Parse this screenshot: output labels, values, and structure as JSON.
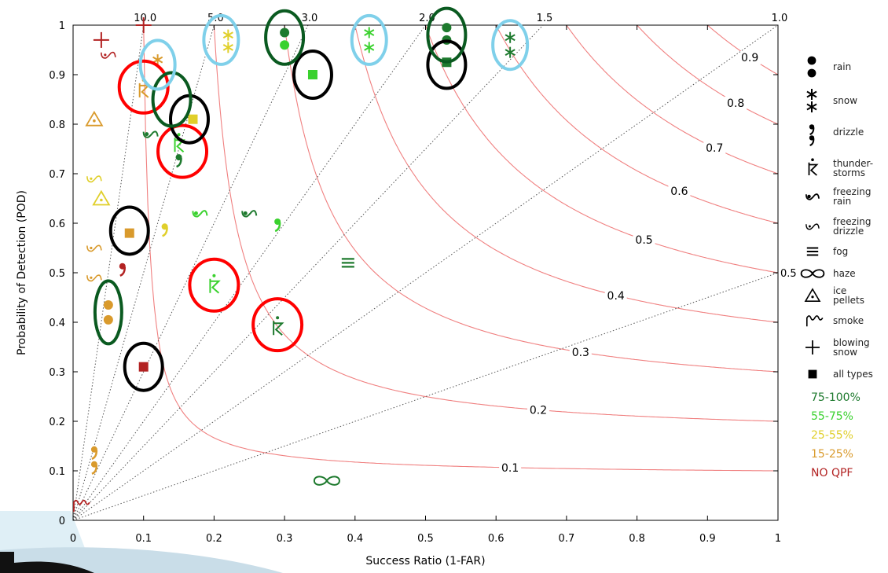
{
  "chart_data": {
    "type": "scatter",
    "title": "",
    "xlabel": "Success Ratio (1-FAR)",
    "ylabel": "Probability of Detection (POD)",
    "xlim": [
      0,
      1
    ],
    "ylim": [
      0,
      1
    ],
    "x_ticks": [
      "0",
      "0.1",
      "0.2",
      "0.3",
      "0.4",
      "0.5",
      "0.6",
      "0.7",
      "0.8",
      "0.9",
      "1"
    ],
    "y_ticks": [
      "0",
      "0.1",
      "0.2",
      "0.3",
      "0.4",
      "0.5",
      "0.6",
      "0.7",
      "0.8",
      "0.9",
      "1"
    ],
    "bias_lines": [
      {
        "bias": 10.0,
        "label": "10.0"
      },
      {
        "bias": 5.0,
        "label": "5.0"
      },
      {
        "bias": 3.0,
        "label": "3.0"
      },
      {
        "bias": 2.0,
        "label": "2.0"
      },
      {
        "bias": 1.5,
        "label": "1.5"
      },
      {
        "bias": 1.0,
        "label": "1.0"
      },
      {
        "bias": 0.5,
        "label": "0.5"
      }
    ],
    "csi_contours": [
      {
        "csi": 0.1,
        "label": "0.1",
        "label_x": 0.62
      },
      {
        "csi": 0.2,
        "label": "0.2",
        "label_x": 0.66
      },
      {
        "csi": 0.3,
        "label": "0.3",
        "label_x": 0.72
      },
      {
        "csi": 0.4,
        "label": "0.4",
        "label_x": 0.77
      },
      {
        "csi": 0.5,
        "label": "0.5",
        "label_x": 0.81
      },
      {
        "csi": 0.6,
        "label": "0.6",
        "label_x": 0.86
      },
      {
        "csi": 0.7,
        "label": "0.7",
        "label_x": 0.91
      },
      {
        "csi": 0.8,
        "label": "0.8",
        "label_x": 0.94
      },
      {
        "csi": 0.9,
        "label": "0.9",
        "label_x": 0.96
      }
    ],
    "colors": {
      "tier_75_100": "#1e7a2e",
      "tier_55_75": "#3ad12e",
      "tier_25_55": "#e0cf2a",
      "tier_15_25": "#d99a2c",
      "no_qpf": "#b22222",
      "csi_line": "#f08080",
      "bias_line": "#555555",
      "highlight_red": "#ff0000",
      "highlight_green": "#0a5a20",
      "highlight_black": "#000000",
      "highlight_blue": "#7fd0ea"
    },
    "points": [
      {
        "type": "rain",
        "tier": "75-100%",
        "x": 0.3,
        "y": 0.985
      },
      {
        "type": "rain",
        "tier": "55-75%",
        "x": 0.3,
        "y": 0.96
      },
      {
        "type": "rain",
        "tier": "75-100%",
        "x": 0.53,
        "y": 0.995
      },
      {
        "type": "rain",
        "tier": "75-100%",
        "x": 0.53,
        "y": 0.97
      },
      {
        "type": "rain",
        "tier": "15-25%",
        "x": 0.05,
        "y": 0.435
      },
      {
        "type": "rain",
        "tier": "15-25%",
        "x": 0.05,
        "y": 0.405
      },
      {
        "type": "snow",
        "tier": "25-55%",
        "x": 0.22,
        "y": 0.98
      },
      {
        "type": "snow",
        "tier": "25-55%",
        "x": 0.22,
        "y": 0.955
      },
      {
        "type": "snow",
        "tier": "55-75%",
        "x": 0.42,
        "y": 0.985
      },
      {
        "type": "snow",
        "tier": "55-75%",
        "x": 0.42,
        "y": 0.955
      },
      {
        "type": "snow",
        "tier": "75-100%",
        "x": 0.62,
        "y": 0.975
      },
      {
        "type": "snow",
        "tier": "75-100%",
        "x": 0.62,
        "y": 0.945
      },
      {
        "type": "snow",
        "tier": "15-25%",
        "x": 0.12,
        "y": 0.93
      },
      {
        "type": "drizzle",
        "tier": "55-75%",
        "x": 0.29,
        "y": 0.6
      },
      {
        "type": "drizzle",
        "tier": "25-55%",
        "x": 0.13,
        "y": 0.59
      },
      {
        "type": "drizzle",
        "tier": "NO QPF",
        "x": 0.07,
        "y": 0.51
      },
      {
        "type": "drizzle",
        "tier": "15-25%",
        "x": 0.03,
        "y": 0.14
      },
      {
        "type": "drizzle",
        "tier": "15-25%",
        "x": 0.03,
        "y": 0.11
      },
      {
        "type": "drizzle",
        "tier": "75-100%",
        "x": 0.15,
        "y": 0.73
      },
      {
        "type": "thunderstorms",
        "tier": "55-75%",
        "x": 0.2,
        "y": 0.475
      },
      {
        "type": "thunderstorms",
        "tier": "75-100%",
        "x": 0.29,
        "y": 0.39
      },
      {
        "type": "thunderstorms",
        "tier": "15-25%",
        "x": 0.1,
        "y": 0.87
      },
      {
        "type": "thunderstorms",
        "tier": "55-75%",
        "x": 0.15,
        "y": 0.76
      },
      {
        "type": "freezing rain",
        "tier": "55-75%",
        "x": 0.18,
        "y": 0.62
      },
      {
        "type": "freezing rain",
        "tier": "75-100%",
        "x": 0.25,
        "y": 0.62
      },
      {
        "type": "freezing rain",
        "tier": "75-100%",
        "x": 0.11,
        "y": 0.78
      },
      {
        "type": "freezing drizzle",
        "tier": "NO QPF",
        "x": 0.05,
        "y": 0.94
      },
      {
        "type": "freezing drizzle",
        "tier": "25-55%",
        "x": 0.03,
        "y": 0.69
      },
      {
        "type": "freezing drizzle",
        "tier": "15-25%",
        "x": 0.03,
        "y": 0.55
      },
      {
        "type": "freezing drizzle",
        "tier": "15-25%",
        "x": 0.03,
        "y": 0.49
      },
      {
        "type": "fog",
        "tier": "75-100%",
        "x": 0.39,
        "y": 0.52
      },
      {
        "type": "haze",
        "tier": "75-100%",
        "x": 0.36,
        "y": 0.08
      },
      {
        "type": "ice pellets",
        "tier": "15-25%",
        "x": 0.03,
        "y": 0.81
      },
      {
        "type": "ice pellets",
        "tier": "25-55%",
        "x": 0.04,
        "y": 0.65
      },
      {
        "type": "blowing snow",
        "tier": "NO QPF",
        "x": 0.04,
        "y": 0.97
      },
      {
        "type": "blowing snow",
        "tier": "NO QPF",
        "x": 0.1,
        "y": 1.0
      },
      {
        "type": "smoke",
        "tier": "NO QPF",
        "x": 0.01,
        "y": 0.03
      },
      {
        "type": "all types",
        "tier": "55-75%",
        "x": 0.34,
        "y": 0.9
      },
      {
        "type": "all types",
        "tier": "75-100%",
        "x": 0.53,
        "y": 0.925
      },
      {
        "type": "all types",
        "tier": "25-55%",
        "x": 0.17,
        "y": 0.81
      },
      {
        "type": "all types",
        "tier": "15-25%",
        "x": 0.08,
        "y": 0.58
      },
      {
        "type": "all types",
        "tier": "NO QPF",
        "x": 0.1,
        "y": 0.31
      }
    ],
    "highlight_circles": [
      {
        "color": "red",
        "x": 0.1,
        "y": 0.875
      },
      {
        "color": "red",
        "x": 0.155,
        "y": 0.745
      },
      {
        "color": "red",
        "x": 0.2,
        "y": 0.475
      },
      {
        "color": "red",
        "x": 0.29,
        "y": 0.395
      },
      {
        "color": "black",
        "x": 0.165,
        "y": 0.81
      },
      {
        "color": "black",
        "x": 0.08,
        "y": 0.585
      },
      {
        "color": "black",
        "x": 0.1,
        "y": 0.31
      },
      {
        "color": "black",
        "x": 0.34,
        "y": 0.9
      },
      {
        "color": "black",
        "x": 0.53,
        "y": 0.92
      },
      {
        "color": "green",
        "x": 0.3,
        "y": 0.975
      },
      {
        "color": "green",
        "x": 0.53,
        "y": 0.98
      },
      {
        "color": "green",
        "x": 0.14,
        "y": 0.85
      },
      {
        "color": "green",
        "x": 0.05,
        "y": 0.42
      },
      {
        "color": "blue",
        "x": 0.21,
        "y": 0.97
      },
      {
        "color": "blue",
        "x": 0.42,
        "y": 0.97
      },
      {
        "color": "blue",
        "x": 0.62,
        "y": 0.96
      },
      {
        "color": "blue",
        "x": 0.12,
        "y": 0.92
      }
    ]
  },
  "legend": {
    "items": [
      {
        "icon": "rain-icon",
        "label": "rain"
      },
      {
        "icon": "snow-icon",
        "label": "snow"
      },
      {
        "icon": "drizzle-icon",
        "label": "drizzle"
      },
      {
        "icon": "thunderstorm-icon",
        "label": "thunder-\nstorms"
      },
      {
        "icon": "freezing-rain-icon",
        "label": "freezing\nrain"
      },
      {
        "icon": "freezing-drizzle-icon",
        "label": "freezing\ndrizzle"
      },
      {
        "icon": "fog-icon",
        "label": "fog"
      },
      {
        "icon": "haze-icon",
        "label": "haze"
      },
      {
        "icon": "ice-pellets-icon",
        "label": "ice\npellets"
      },
      {
        "icon": "smoke-icon",
        "label": "smoke"
      },
      {
        "icon": "blowing-snow-icon",
        "label": "blowing\nsnow"
      },
      {
        "icon": "all-types-icon",
        "label": "all types"
      }
    ],
    "tiers": [
      {
        "label": "75-100%",
        "color": "#1e7a2e"
      },
      {
        "label": "55-75%",
        "color": "#3ad12e"
      },
      {
        "label": "25-55%",
        "color": "#e0cf2a"
      },
      {
        "label": "15-25%",
        "color": "#d99a2c"
      },
      {
        "label": "NO QPF",
        "color": "#b22222"
      }
    ]
  }
}
